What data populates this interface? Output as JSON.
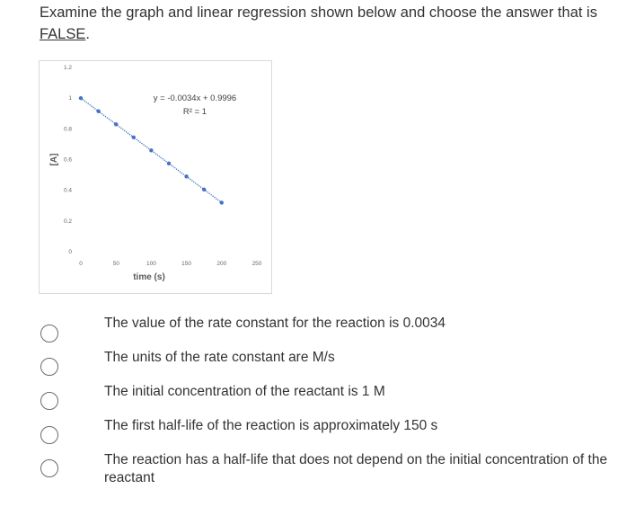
{
  "question": {
    "prefix": "Examine the graph and linear regression shown below and choose the answer that is ",
    "emphasis": "FALSE",
    "suffix": "."
  },
  "chart_data": {
    "type": "scatter",
    "x": [
      0,
      25,
      50,
      75,
      100,
      125,
      150,
      175,
      200
    ],
    "y": [
      0.9996,
      0.9146,
      0.8296,
      0.7446,
      0.6596,
      0.5746,
      0.4896,
      0.4046,
      0.3196
    ],
    "xlabel": "time (s)",
    "ylabel": "[A]",
    "xlim": [
      0,
      250
    ],
    "ylim": [
      0,
      1.2
    ],
    "x_ticks": [
      "0",
      "50",
      "100",
      "150",
      "200",
      "250"
    ],
    "y_ticks": [
      "0",
      "0.2",
      "0.4",
      "0.6",
      "0.8",
      "1",
      "1.2"
    ],
    "trendline": {
      "slope": -0.0034,
      "intercept": 0.9996,
      "style": "dotted"
    },
    "annotation": {
      "equation": "y = -0.0034x + 0.9996",
      "r_squared": "R² = 1"
    },
    "grid": false,
    "marker_color": "#4472c4"
  },
  "options": [
    {
      "label": "The value of the rate constant for the reaction is 0.0034"
    },
    {
      "label": "The units of the rate constant are M/s"
    },
    {
      "label": "The initial concentration of the reactant is 1 M"
    },
    {
      "label": "The first half-life of the reaction is approximately 150 s"
    },
    {
      "label": "The reaction has a half-life that does not depend on the initial concentration of the reactant"
    }
  ]
}
